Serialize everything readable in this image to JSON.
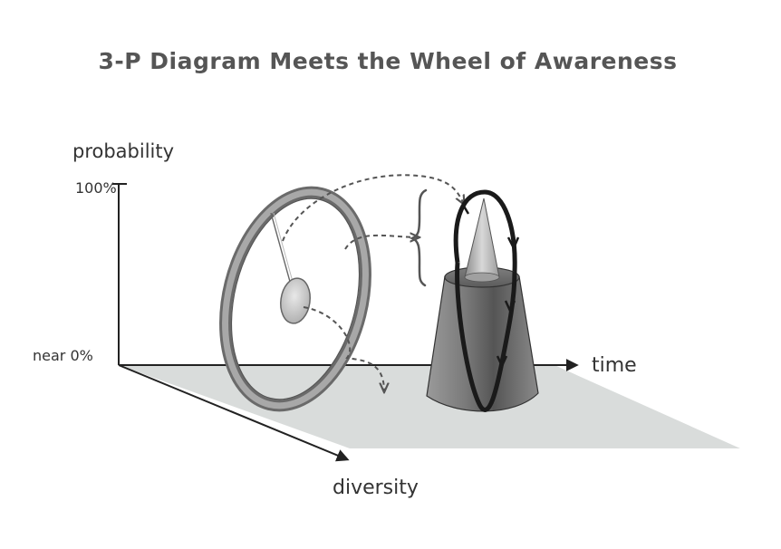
{
  "title": "3-P Diagram Meets the Wheel of Awareness",
  "axes": {
    "y_label": "probability",
    "y_top_tick": "100%",
    "y_bottom_tick": "near 0%",
    "x_label": "time",
    "z_label": "diversity"
  },
  "colors": {
    "plane": "#d9dcdb",
    "axis": "#222222",
    "rim": "#8e8e8e",
    "hub": "#bdbdbd",
    "plateau": "#6f6f6f",
    "peak": "#b9b9b9",
    "loop": "#1a1a1a"
  },
  "icons": [
    "wheel-of-awareness-icon",
    "plateau-peak-icon"
  ]
}
